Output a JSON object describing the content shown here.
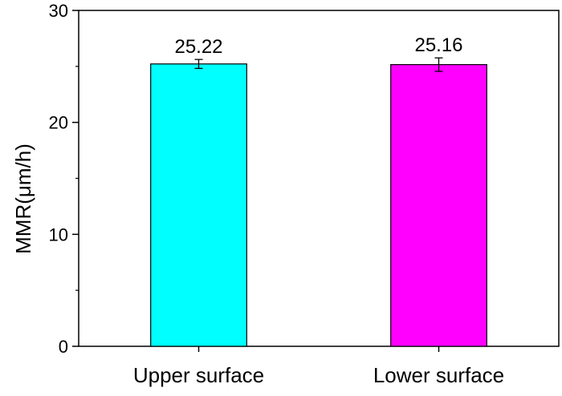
{
  "chart_data": {
    "type": "bar",
    "title": "",
    "xlabel": "",
    "ylabel": "MMR(μm/h)",
    "ylim": [
      0,
      30
    ],
    "yticks": [
      0,
      10,
      20,
      30
    ],
    "grid": false,
    "legend": "none",
    "categories": [
      "Upper surface",
      "Lower surface"
    ],
    "values": [
      25.22,
      25.16
    ],
    "error_bars": [
      0.4,
      0.6
    ],
    "data_labels": [
      "25.22",
      "25.16"
    ],
    "colors": [
      "#00FFFF",
      "#FF00FF"
    ]
  }
}
